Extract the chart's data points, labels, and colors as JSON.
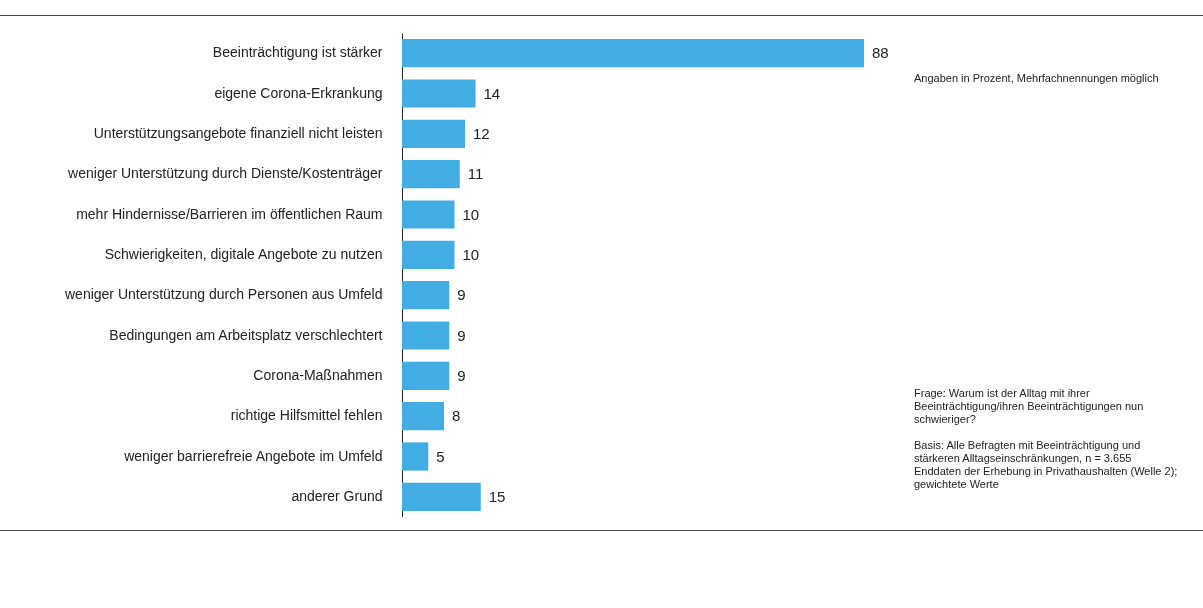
{
  "chart_data": {
    "type": "bar",
    "orientation": "horizontal",
    "data_labels": true,
    "color": "#41ade2",
    "categories": [
      "Beeinträchtigung ist stärker",
      "eigene Corona-Erkrankung",
      "Unterstützungsangebote finanziell nicht leisten",
      "weniger Unterstützung durch Dienste/Kostenträger",
      "mehr Hindernisse/Barrieren im öffentlichen Raum",
      "Schwierigkeiten, digitale Angebote zu nutzen",
      "weniger Unterstützung durch Personen aus Umfeld",
      "Bedingungen am Arbeitsplatz verschlechtert",
      "Corona-Maßnahmen",
      "richtige Hilfsmittel fehlen",
      "weniger barrierefreie Angebote im Umfeld",
      "anderer Grund"
    ],
    "values": [
      88,
      14,
      12,
      11,
      10,
      10,
      9,
      9,
      9,
      8,
      5,
      15
    ],
    "annotations": [
      "Angaben in Prozent, Mehrfachnennungen möglich",
      "Frage: Warum ist der Alltag mit ihrer Beeinträchtigung/ihren Beeinträchtigungen nun schwieriger?",
      "Basis: Alle Befragten mit Beeinträchtigung und stärkeren Alltagseinschränkungen, n = 3.655",
      "Enddaten der Erhebung in Privathaushalten (Welle 2); gewichtete Werte"
    ]
  }
}
